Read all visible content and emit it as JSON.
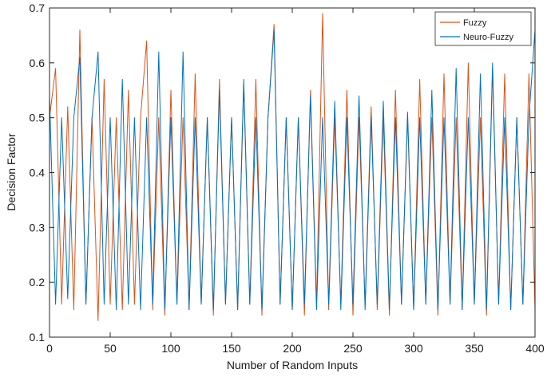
{
  "chart_data": {
    "type": "line",
    "title": "",
    "xlabel": "Number of Random Inputs",
    "ylabel": "Decision Factor",
    "xlim": [
      0,
      400
    ],
    "ylim": [
      0.1,
      0.7
    ],
    "xticks": [
      "0",
      "50",
      "100",
      "150",
      "200",
      "250",
      "300",
      "350",
      "400"
    ],
    "yticks": [
      "0.1",
      "0.2",
      "0.3",
      "0.4",
      "0.5",
      "0.6",
      "0.7"
    ],
    "grid": false,
    "legend_position": "top-right",
    "x": [
      0,
      5,
      10,
      15,
      20,
      25,
      30,
      35,
      40,
      45,
      50,
      55,
      60,
      65,
      70,
      75,
      80,
      85,
      90,
      95,
      100,
      105,
      110,
      115,
      120,
      125,
      130,
      135,
      140,
      145,
      150,
      155,
      160,
      165,
      170,
      175,
      180,
      185,
      190,
      195,
      200,
      205,
      210,
      215,
      220,
      225,
      230,
      235,
      240,
      245,
      250,
      255,
      260,
      265,
      270,
      275,
      280,
      285,
      290,
      295,
      300,
      305,
      310,
      315,
      320,
      325,
      330,
      335,
      340,
      345,
      350,
      355,
      360,
      365,
      370,
      375,
      380,
      385,
      390,
      395,
      400
    ],
    "series": [
      {
        "name": "Fuzzy",
        "color": "#d95319",
        "values": [
          0.5,
          0.59,
          0.16,
          0.52,
          0.15,
          0.66,
          0.16,
          0.5,
          0.13,
          0.57,
          0.16,
          0.5,
          0.15,
          0.55,
          0.16,
          0.5,
          0.64,
          0.15,
          0.5,
          0.14,
          0.55,
          0.16,
          0.5,
          0.15,
          0.58,
          0.16,
          0.5,
          0.14,
          0.57,
          0.16,
          0.5,
          0.15,
          0.56,
          0.16,
          0.57,
          0.14,
          0.5,
          0.67,
          0.16,
          0.5,
          0.15,
          0.5,
          0.14,
          0.55,
          0.16,
          0.69,
          0.15,
          0.5,
          0.16,
          0.55,
          0.14,
          0.5,
          0.16,
          0.52,
          0.15,
          0.5,
          0.14,
          0.55,
          0.16,
          0.5,
          0.15,
          0.57,
          0.16,
          0.5,
          0.14,
          0.58,
          0.16,
          0.5,
          0.15,
          0.6,
          0.16,
          0.5,
          0.14,
          0.59,
          0.16,
          0.58,
          0.15,
          0.5,
          0.16,
          0.58,
          0.15
        ]
      },
      {
        "name": "Neuro-Fuzzy",
        "color": "#0072bd",
        "values": [
          0.54,
          0.16,
          0.5,
          0.17,
          0.5,
          0.61,
          0.16,
          0.5,
          0.62,
          0.16,
          0.5,
          0.15,
          0.57,
          0.16,
          0.5,
          0.15,
          0.5,
          0.16,
          0.62,
          0.15,
          0.5,
          0.16,
          0.62,
          0.15,
          0.5,
          0.16,
          0.5,
          0.15,
          0.55,
          0.16,
          0.5,
          0.15,
          0.57,
          0.16,
          0.5,
          0.15,
          0.5,
          0.66,
          0.16,
          0.5,
          0.15,
          0.5,
          0.16,
          0.54,
          0.15,
          0.5,
          0.16,
          0.53,
          0.15,
          0.5,
          0.16,
          0.54,
          0.15,
          0.5,
          0.16,
          0.53,
          0.15,
          0.5,
          0.16,
          0.51,
          0.15,
          0.5,
          0.16,
          0.55,
          0.15,
          0.5,
          0.16,
          0.59,
          0.15,
          0.5,
          0.16,
          0.58,
          0.15,
          0.6,
          0.16,
          0.5,
          0.15,
          0.5,
          0.16,
          0.5,
          0.66
        ]
      }
    ]
  }
}
